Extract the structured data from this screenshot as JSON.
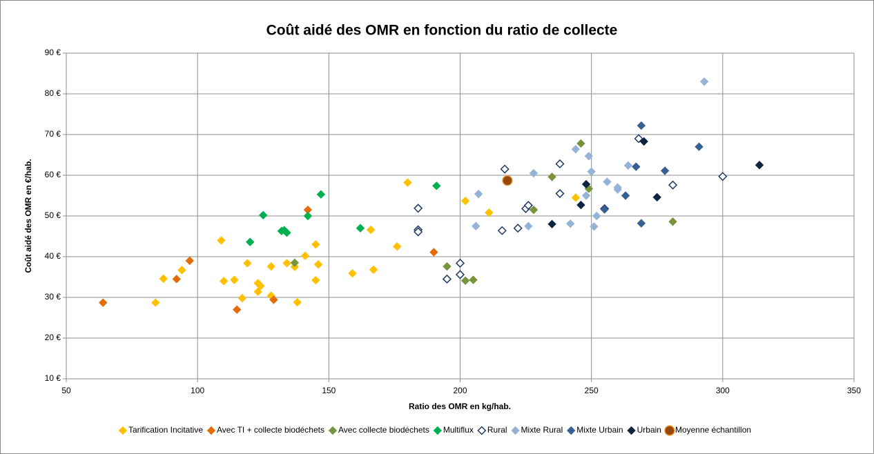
{
  "chart_data": {
    "type": "scatter",
    "title": "Coût aidé des OMR en fonction du ratio de collecte",
    "x_label": "Ratio des OMR en kg/hab.",
    "y_label": "Coût aidé des OMR en €/hab.",
    "xlim": [
      50,
      350
    ],
    "xticks": [
      50,
      100,
      150,
      200,
      250,
      300,
      350
    ],
    "ylim": [
      10,
      90
    ],
    "yticks": [
      {
        "value": 10,
        "label": "10 €"
      },
      {
        "value": 20,
        "label": "20 €"
      },
      {
        "value": 30,
        "label": "30 €"
      },
      {
        "value": 40,
        "label": "40 €"
      },
      {
        "value": 50,
        "label": "50 €"
      },
      {
        "value": 60,
        "label": "60 €"
      },
      {
        "value": 70,
        "label": "70 €"
      },
      {
        "value": 80,
        "label": "80 €"
      },
      {
        "value": 90,
        "label": "90 €"
      }
    ],
    "grid": true,
    "legend": "bottom",
    "series": [
      {
        "name": "Tarification Incitative",
        "color": "#FFC000",
        "marker": "diamond",
        "x": [
          84,
          87,
          94,
          109,
          110,
          114,
          117,
          119,
          123,
          123,
          124,
          128,
          128,
          134,
          137,
          138,
          141,
          145,
          145,
          146,
          159,
          166,
          167,
          176,
          180,
          202,
          211,
          244
        ],
        "y": [
          28.7,
          34.6,
          36.7,
          44,
          34,
          34.3,
          29.8,
          38.4,
          33.5,
          31.4,
          32.8,
          37.6,
          30.4,
          38.4,
          37.5,
          28.8,
          40.2,
          43,
          34.2,
          38.1,
          35.9,
          46.6,
          36.8,
          42.5,
          58.2,
          53.7,
          50.8,
          54.5
        ]
      },
      {
        "name": "Avec TI + collecte biodéchets",
        "color": "#E36C09",
        "marker": "diamond",
        "x": [
          64,
          92,
          97,
          115,
          129,
          142,
          190
        ],
        "y": [
          28.7,
          34.5,
          39,
          27,
          29.4,
          51.5,
          41.1
        ]
      },
      {
        "name": "Avec collecte biodéchets",
        "color": "#77933C",
        "marker": "diamond",
        "x": [
          137,
          195,
          202,
          205,
          228,
          235,
          246,
          249,
          281
        ],
        "y": [
          38.5,
          37.6,
          34.1,
          34.3,
          51.5,
          59.6,
          67.8,
          56.7,
          48.6
        ]
      },
      {
        "name": "Multiflux",
        "color": "#00B050",
        "marker": "diamond",
        "x": [
          120,
          125,
          132,
          133,
          134,
          142,
          147,
          162,
          191
        ],
        "y": [
          43.6,
          50.2,
          46.3,
          46.5,
          45.9,
          50,
          55.3,
          47,
          57.4
        ]
      },
      {
        "name": "Rural",
        "color": "#FFFFFF",
        "edgecolor": "#1F3864",
        "marker": "diamond",
        "x": [
          184,
          184,
          184,
          195,
          200,
          200,
          216,
          217,
          222,
          225,
          226,
          238,
          238,
          255,
          268,
          281,
          300
        ],
        "y": [
          51.9,
          46.6,
          46.1,
          34.5,
          38.4,
          35.6,
          46.4,
          61.5,
          47,
          51.8,
          52.6,
          55.5,
          62.8,
          51.8,
          69,
          57.6,
          59.7
        ]
      },
      {
        "name": "Mixte Rural",
        "color": "#95B3D7",
        "marker": "diamond",
        "x": [
          206,
          207,
          226,
          228,
          242,
          244,
          248,
          249,
          250,
          251,
          252,
          256,
          260,
          260,
          264,
          293
        ],
        "y": [
          47.5,
          55.4,
          47.5,
          60.5,
          48.1,
          66.4,
          55,
          64.7,
          60.9,
          47.4,
          50,
          58.4,
          57,
          56.5,
          62.4,
          83
        ]
      },
      {
        "name": "Mixte Urbain",
        "color": "#376092",
        "marker": "diamond",
        "x": [
          255,
          263,
          267,
          269,
          269,
          278,
          291
        ],
        "y": [
          51.6,
          55,
          62.1,
          72.2,
          48.2,
          61.1,
          67
        ]
      },
      {
        "name": "Urbain",
        "color": "#0F243E",
        "marker": "diamond",
        "x": [
          235,
          246,
          248,
          270,
          275,
          314
        ],
        "y": [
          48,
          52.7,
          57.8,
          68.3,
          54.6,
          62.5
        ]
      },
      {
        "name": "Moyenne échantillon",
        "color": "#984807",
        "edgecolor": "#E3A34A",
        "marker": "circle",
        "x": [
          218
        ],
        "y": [
          58.7
        ]
      }
    ]
  }
}
